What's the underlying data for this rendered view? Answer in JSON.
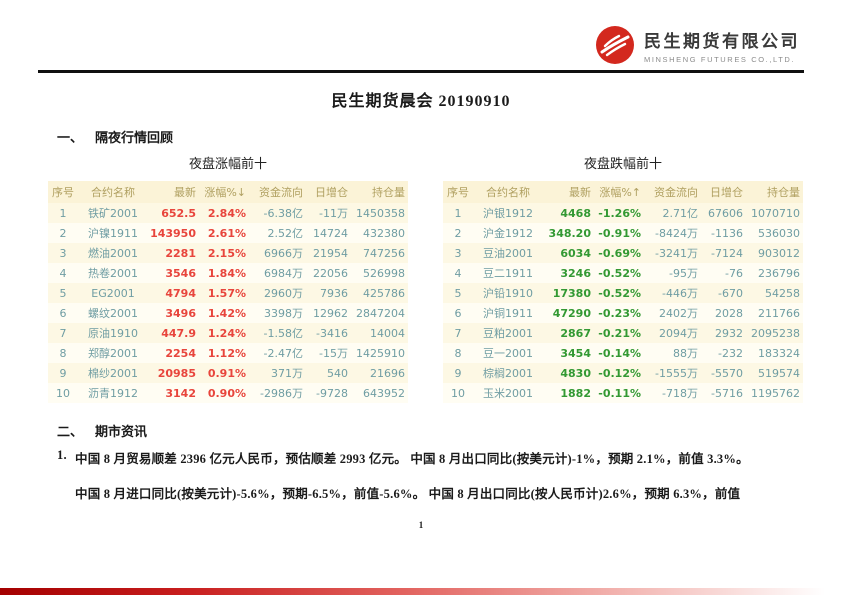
{
  "header": {
    "company_cn": "民生期货有限公司",
    "company_en": "MINSHENG FUTURES CO.,LTD."
  },
  "document": {
    "title": "民生期货晨会 20190910",
    "page_number": "1"
  },
  "section_market_review": {
    "numeral": "一、",
    "heading": "隔夜行情回顾"
  },
  "section_news": {
    "numeral": "二、",
    "heading": "期市资讯"
  },
  "tables": {
    "gainers": {
      "caption": "夜盘涨幅前十",
      "columns": [
        "序号",
        "合约名称",
        "最新",
        "涨幅%↓",
        "资金流向",
        "日增仓",
        "持仓量"
      ],
      "rows": [
        [
          "1",
          "铁矿2001",
          "652.5",
          "2.84%",
          "-6.38亿",
          "-11万",
          "1450358"
        ],
        [
          "2",
          "沪镍1911",
          "143950",
          "2.61%",
          "2.52亿",
          "14724",
          "432380"
        ],
        [
          "3",
          "燃油2001",
          "2281",
          "2.15%",
          "6966万",
          "21954",
          "747256"
        ],
        [
          "4",
          "热卷2001",
          "3546",
          "1.84%",
          "6984万",
          "22056",
          "526998"
        ],
        [
          "5",
          "EG2001",
          "4794",
          "1.57%",
          "2960万",
          "7936",
          "425786"
        ],
        [
          "6",
          "螺纹2001",
          "3496",
          "1.42%",
          "3398万",
          "12962",
          "2847204"
        ],
        [
          "7",
          "原油1910",
          "447.9",
          "1.24%",
          "-1.58亿",
          "-3416",
          "14004"
        ],
        [
          "8",
          "郑醇2001",
          "2254",
          "1.12%",
          "-2.47亿",
          "-15万",
          "1425910"
        ],
        [
          "9",
          "棉纱2001",
          "20985",
          "0.91%",
          "371万",
          "540",
          "21696"
        ],
        [
          "10",
          "沥青1912",
          "3142",
          "0.90%",
          "-2986万",
          "-9728",
          "643952"
        ]
      ]
    },
    "losers": {
      "caption": "夜盘跌幅前十",
      "columns": [
        "序号",
        "合约名称",
        "最新",
        "涨幅%↑",
        "资金流向",
        "日增仓",
        "持仓量"
      ],
      "rows": [
        [
          "1",
          "沪银1912",
          "4468",
          "-1.26%",
          "2.71亿",
          "67606",
          "1070710"
        ],
        [
          "2",
          "沪金1912",
          "348.20",
          "-0.91%",
          "-8424万",
          "-1136",
          "536030"
        ],
        [
          "3",
          "豆油2001",
          "6034",
          "-0.69%",
          "-3241万",
          "-7124",
          "903012"
        ],
        [
          "4",
          "豆二1911",
          "3246",
          "-0.52%",
          "-95万",
          "-76",
          "236796"
        ],
        [
          "5",
          "沪铅1910",
          "17380",
          "-0.52%",
          "-446万",
          "-670",
          "54258"
        ],
        [
          "6",
          "沪铜1911",
          "47290",
          "-0.23%",
          "2402万",
          "2028",
          "211766"
        ],
        [
          "7",
          "豆粕2001",
          "2867",
          "-0.21%",
          "2094万",
          "2932",
          "2095238"
        ],
        [
          "8",
          "豆一2001",
          "3454",
          "-0.14%",
          "88万",
          "-232",
          "183324"
        ],
        [
          "9",
          "棕榈2001",
          "4830",
          "-0.12%",
          "-1555万",
          "-5570",
          "519574"
        ],
        [
          "10",
          "玉米2001",
          "1882",
          "-0.11%",
          "-718万",
          "-5716",
          "1195762"
        ]
      ]
    }
  },
  "news": {
    "item_number": "1.",
    "line1": "中国 8 月贸易顺差 2396 亿元人民币，预估顺差 2993 亿元。 中国 8 月出口同比(按美元计)-1%，预期 2.1%，前值 3.3%。",
    "line2": "中国 8 月进口同比(按美元计)-5.6%，预期-6.5%，前值-5.6%。 中国 8 月出口同比(按人民币计)2.6%，预期 6.3%，前值"
  },
  "colors": {
    "up": "#e8453c",
    "down": "#339933",
    "muted": "#6f9da3",
    "table_header_text": "#b0a061",
    "logo_red": "#d3281e"
  }
}
